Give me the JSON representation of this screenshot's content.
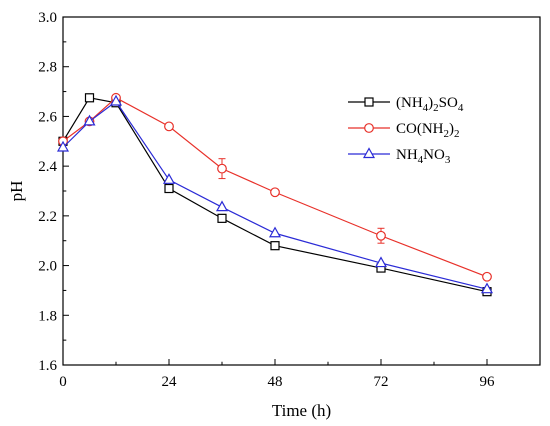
{
  "chart_data": {
    "type": "line",
    "xlabel": "Time (h)",
    "ylabel": "pH",
    "xlim": [
      0,
      108
    ],
    "ylim": [
      1.6,
      3.0
    ],
    "x_ticks": [
      0,
      24,
      48,
      72,
      96
    ],
    "x_tick_labels": [
      "0",
      "24",
      "48",
      "72",
      "96"
    ],
    "y_ticks": [
      1.6,
      1.8,
      2.0,
      2.2,
      2.4,
      2.6,
      2.8,
      3.0
    ],
    "y_tick_labels": [
      "1.6",
      "1.8",
      "2.0",
      "2.2",
      "2.4",
      "2.6",
      "2.8",
      "3.0"
    ],
    "grid": false,
    "legend_position": "right",
    "series": [
      {
        "name": "(NH4)2SO4",
        "label_parts": [
          [
            "(NH",
            "n"
          ],
          [
            "4",
            "sub"
          ],
          [
            ")",
            "n"
          ],
          [
            "2",
            "sub"
          ],
          [
            "SO",
            "n"
          ],
          [
            "4",
            "sub"
          ]
        ],
        "color": "#000000",
        "marker": "square",
        "x": [
          0,
          6,
          12,
          24,
          36,
          48,
          72,
          96
        ],
        "y": [
          2.5,
          2.675,
          2.655,
          2.31,
          2.19,
          2.08,
          1.99,
          1.895
        ],
        "err": [
          0,
          0,
          0,
          0,
          0,
          0,
          0,
          0
        ]
      },
      {
        "name": "CO(NH2)2",
        "label_parts": [
          [
            "CO(NH",
            "n"
          ],
          [
            "2",
            "sub"
          ],
          [
            ")",
            "n"
          ],
          [
            "2",
            "sub"
          ]
        ],
        "color": "#e8312a",
        "marker": "circle",
        "x": [
          0,
          6,
          12,
          24,
          36,
          48,
          72,
          96
        ],
        "y": [
          2.5,
          2.58,
          2.675,
          2.56,
          2.39,
          2.295,
          2.12,
          1.955
        ],
        "err": [
          0,
          0,
          0,
          0,
          0.04,
          0,
          0.03,
          0
        ]
      },
      {
        "name": "NH4NO3",
        "label_parts": [
          [
            "NH",
            "n"
          ],
          [
            "4",
            "sub"
          ],
          [
            "NO",
            "n"
          ],
          [
            "3",
            "sub"
          ]
        ],
        "color": "#2b2bd6",
        "marker": "triangle",
        "x": [
          0,
          6,
          12,
          24,
          36,
          48,
          72,
          96
        ],
        "y": [
          2.475,
          2.58,
          2.66,
          2.345,
          2.235,
          2.13,
          2.01,
          1.905
        ],
        "err": [
          0,
          0,
          0,
          0,
          0,
          0,
          0,
          0
        ]
      }
    ]
  }
}
